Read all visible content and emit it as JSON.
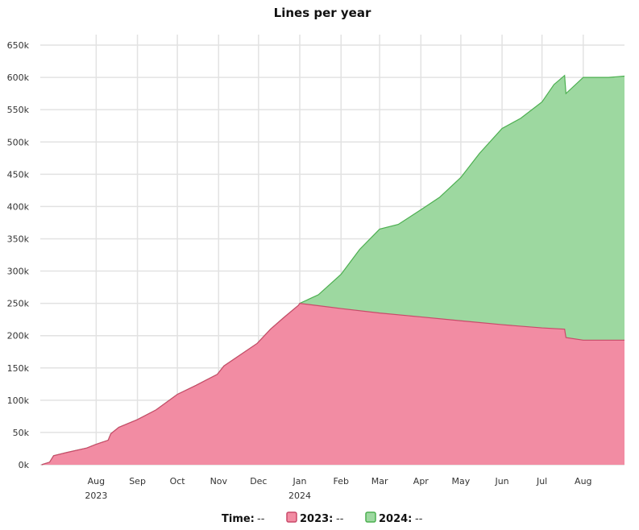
{
  "chart_data": {
    "type": "area",
    "title": "Lines per year",
    "stacked": true,
    "x_ticks": [
      {
        "date": "2023-08-01",
        "label": "Aug",
        "sub": "2023"
      },
      {
        "date": "2023-09-01",
        "label": "Sep",
        "sub": ""
      },
      {
        "date": "2023-10-01",
        "label": "Oct",
        "sub": ""
      },
      {
        "date": "2023-11-01",
        "label": "Nov",
        "sub": ""
      },
      {
        "date": "2023-12-01",
        "label": "Dec",
        "sub": ""
      },
      {
        "date": "2024-01-01",
        "label": "Jan",
        "sub": "2024"
      },
      {
        "date": "2024-02-01",
        "label": "Feb",
        "sub": ""
      },
      {
        "date": "2024-03-01",
        "label": "Mar",
        "sub": ""
      },
      {
        "date": "2024-04-01",
        "label": "Apr",
        "sub": ""
      },
      {
        "date": "2024-05-01",
        "label": "May",
        "sub": ""
      },
      {
        "date": "2024-06-01",
        "label": "Jun",
        "sub": ""
      },
      {
        "date": "2024-07-01",
        "label": "Jul",
        "sub": ""
      },
      {
        "date": "2024-08-01",
        "label": "Aug",
        "sub": ""
      }
    ],
    "xlim": [
      "2023-06-20",
      "2024-09-01"
    ],
    "y_ticks": [
      {
        "value": 0,
        "label": "0k"
      },
      {
        "value": 50000,
        "label": "50k"
      },
      {
        "value": 100000,
        "label": "100k"
      },
      {
        "value": 150000,
        "label": "150k"
      },
      {
        "value": 200000,
        "label": "200k"
      },
      {
        "value": 250000,
        "label": "250k"
      },
      {
        "value": 300000,
        "label": "300k"
      },
      {
        "value": 350000,
        "label": "350k"
      },
      {
        "value": 400000,
        "label": "400k"
      },
      {
        "value": 450000,
        "label": "450k"
      },
      {
        "value": 500000,
        "label": "500k"
      },
      {
        "value": 550000,
        "label": "550k"
      },
      {
        "value": 600000,
        "label": "600k"
      },
      {
        "value": 650000,
        "label": "650k"
      }
    ],
    "ylim": [
      0,
      670000
    ],
    "grid": true,
    "series": [
      {
        "name": "2023",
        "fill": "#f28ca3",
        "stroke": "#c94a6a",
        "points": [
          [
            "2023-06-21",
            0
          ],
          [
            "2023-06-27",
            4000
          ],
          [
            "2023-06-30",
            14000
          ],
          [
            "2023-07-10",
            19000
          ],
          [
            "2023-07-25",
            26000
          ],
          [
            "2023-07-31",
            31000
          ],
          [
            "2023-08-10",
            38000
          ],
          [
            "2023-08-12",
            48000
          ],
          [
            "2023-08-18",
            58000
          ],
          [
            "2023-09-01",
            70000
          ],
          [
            "2023-09-15",
            85000
          ],
          [
            "2023-10-01",
            109000
          ],
          [
            "2023-10-15",
            123000
          ],
          [
            "2023-10-31",
            140000
          ],
          [
            "2023-11-05",
            153000
          ],
          [
            "2023-11-15",
            167000
          ],
          [
            "2023-11-30",
            188000
          ],
          [
            "2023-12-10",
            210000
          ],
          [
            "2023-12-20",
            228000
          ],
          [
            "2023-12-31",
            247000
          ],
          [
            "2024-01-01",
            250000
          ],
          [
            "2024-02-01",
            242000
          ],
          [
            "2024-03-01",
            235000
          ],
          [
            "2024-04-01",
            229000
          ],
          [
            "2024-05-01",
            223000
          ],
          [
            "2024-06-01",
            217000
          ],
          [
            "2024-07-01",
            212000
          ],
          [
            "2024-07-18",
            210000
          ],
          [
            "2024-07-19",
            197000
          ],
          [
            "2024-08-01",
            193000
          ],
          [
            "2024-09-01",
            193000
          ]
        ]
      },
      {
        "name": "2024",
        "fill": "#9dd8a0",
        "stroke": "#4caf50",
        "points": [
          [
            "2023-06-21",
            0
          ],
          [
            "2023-12-31",
            0
          ],
          [
            "2024-01-01",
            0
          ],
          [
            "2024-01-15",
            17000
          ],
          [
            "2024-02-01",
            53000
          ],
          [
            "2024-02-15",
            95000
          ],
          [
            "2024-03-01",
            130000
          ],
          [
            "2024-03-15",
            140000
          ],
          [
            "2024-04-01",
            166000
          ],
          [
            "2024-04-15",
            188000
          ],
          [
            "2024-05-01",
            222000
          ],
          [
            "2024-05-15",
            262000
          ],
          [
            "2024-06-01",
            304000
          ],
          [
            "2024-06-15",
            322000
          ],
          [
            "2024-07-01",
            350000
          ],
          [
            "2024-07-10",
            378000
          ],
          [
            "2024-07-18",
            393000
          ],
          [
            "2024-07-19",
            378000
          ],
          [
            "2024-08-01",
            407000
          ],
          [
            "2024-08-20",
            407000
          ],
          [
            "2024-09-01",
            409000
          ]
        ]
      }
    ]
  },
  "legend": {
    "time_label": "Time:",
    "time_value": "--",
    "items": [
      {
        "label": "2023:",
        "value": "--",
        "fill": "#f28ca3",
        "stroke": "#c94a6a"
      },
      {
        "label": "2024:",
        "value": "--",
        "fill": "#9dd8a0",
        "stroke": "#4caf50"
      }
    ]
  }
}
